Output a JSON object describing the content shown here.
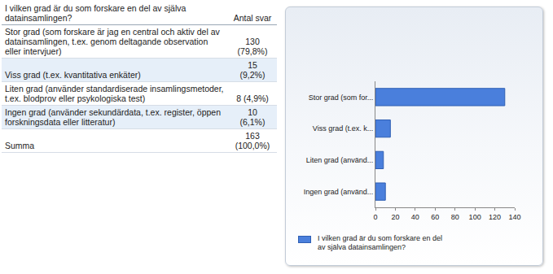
{
  "chart_data": {
    "type": "bar",
    "orientation": "horizontal",
    "categories": [
      "Stor grad (som for...",
      "Viss grad (t.ex. k...",
      "Liten grad (använd...",
      "Ingen grad (använd..."
    ],
    "series": [
      {
        "name": "I vilken grad är du som forskare en del av själva datainsamlingen?",
        "color": "#4a7fdc",
        "values": [
          130,
          15,
          8,
          10
        ]
      }
    ],
    "xlim": [
      0,
      140
    ],
    "xticks": [
      0,
      20,
      40,
      60,
      80,
      100,
      120,
      140
    ],
    "grid": false,
    "legend": "bottom"
  },
  "table": {
    "header": [
      "I vilken grad är du som forskare en del av själva datainsamlingen?",
      "Antal svar"
    ],
    "rows": [
      [
        "Stor grad (som forskare är jag en central och aktiv del av datainsamlingen, t.ex. genom deltagande observation eller intervjuer)",
        [
          "130",
          "(79,8%)"
        ]
      ],
      [
        "Viss grad (t.ex. kvantitativa enkäter)",
        [
          "15",
          "(9,2%)"
        ]
      ],
      [
        "Liten grad (använder standardiserade insamlingsmetoder, t.ex. blodprov eller psykologiska test)",
        [
          "8 (4,9%)"
        ]
      ],
      [
        "Ingen grad (använder sekundärdata, t.ex. register, öppen forskningsdata eller litteratur)",
        [
          "10",
          "(6,1%)"
        ]
      ],
      [
        "Summa",
        [
          "163",
          "(100,0%)"
        ]
      ]
    ]
  }
}
